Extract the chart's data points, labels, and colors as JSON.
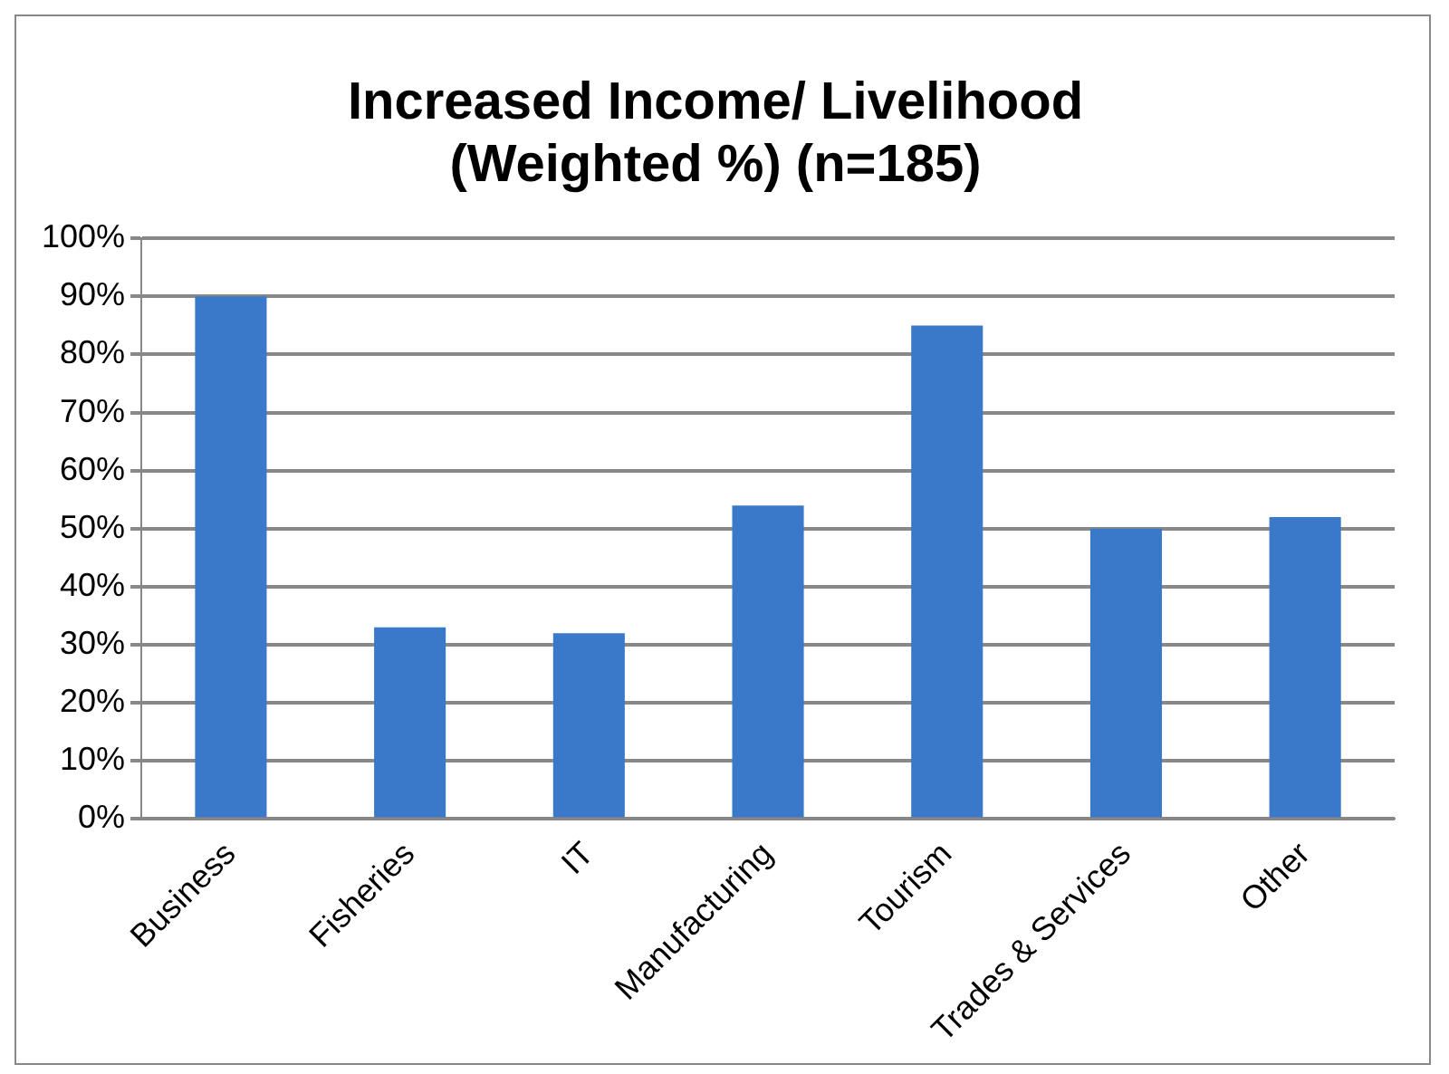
{
  "chart_data": {
    "type": "bar",
    "title": [
      "Increased Income/ Livelihood",
      "(Weighted %) (n=185)"
    ],
    "categories": [
      "Business",
      "Fisheries",
      "IT",
      "Manufacturing",
      "Tourism",
      "Trades & Services",
      "Other"
    ],
    "values": [
      90,
      33,
      32,
      54,
      85,
      50,
      52
    ],
    "color": "#3a78c9",
    "ylim": [
      0,
      100
    ],
    "yticks": [
      {
        "value": 0,
        "label": "0%"
      },
      {
        "value": 10,
        "label": "10%"
      },
      {
        "value": 20,
        "label": "20%"
      },
      {
        "value": 30,
        "label": "30%"
      },
      {
        "value": 40,
        "label": "40%"
      },
      {
        "value": 50,
        "label": "50%"
      },
      {
        "value": 60,
        "label": "60%"
      },
      {
        "value": 70,
        "label": "70%"
      },
      {
        "value": 80,
        "label": "80%"
      },
      {
        "value": 90,
        "label": "90%"
      },
      {
        "value": 100,
        "label": "100%"
      }
    ],
    "grid": "y",
    "legend": false
  }
}
